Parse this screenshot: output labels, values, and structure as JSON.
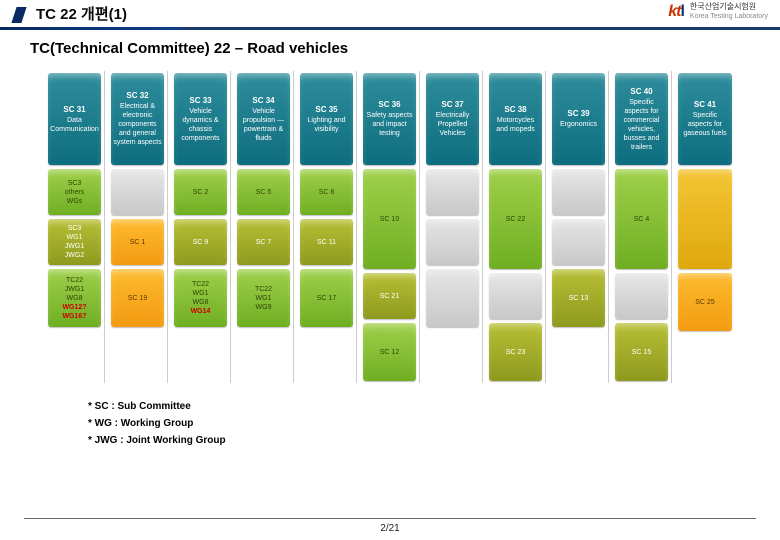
{
  "header": {
    "title": "TC 22 개편(1)",
    "logo_mark_a": "kt",
    "logo_mark_b": "l",
    "logo_line1": "한국산업기술시험원",
    "logo_line2": "Korea Testing Laboratory"
  },
  "subtitle": "TC(Technical Committee) 22 – Road vehicles",
  "colors": {
    "head": "c-teal",
    "greenA": "c-green",
    "oliveB": "c-olive",
    "orange": "c-orange",
    "gold": "c-gold",
    "gray": "c-gray"
  },
  "columns": [
    {
      "head": {
        "code": "SC 31",
        "desc": "Data Communication"
      },
      "a": {
        "cls": "c-green",
        "lines": [
          "SC3",
          "others",
          "WGs"
        ]
      },
      "b": {
        "cls": "c-olive",
        "lines": [
          "SC3",
          "WG1",
          "JWG1",
          "JWG2"
        ]
      },
      "c": {
        "cls": "c-green c-red-tx",
        "lines": [
          "TC22",
          "JWG1",
          "WG8"
        ],
        "red": [
          "WG12?",
          "WG16?"
        ]
      }
    },
    {
      "head": {
        "code": "SC 32",
        "desc": "Electrical & electronic components and general system aspects"
      },
      "a": {
        "cls": "c-gray",
        "lines": [
          ""
        ]
      },
      "b": {
        "cls": "c-orange",
        "lines": [
          "SC 1"
        ]
      },
      "c": {
        "cls": "c-orange",
        "lines": [
          "SC 19"
        ]
      }
    },
    {
      "head": {
        "code": "SC 33",
        "desc": "Vehicle dynamics & chassis components"
      },
      "a": {
        "cls": "c-green",
        "lines": [
          "SC 2"
        ]
      },
      "b": {
        "cls": "c-olive",
        "lines": [
          "SC 9"
        ]
      },
      "c": {
        "cls": "c-green c-red-tx",
        "lines": [
          "TC22",
          "WG1",
          "WG8"
        ],
        "red": [
          "WG14"
        ]
      }
    },
    {
      "head": {
        "code": "SC 34",
        "desc": "Vehicle propulsion — powertrain & fluids"
      },
      "a": {
        "cls": "c-green",
        "lines": [
          "SC 5"
        ]
      },
      "b": {
        "cls": "c-olive",
        "lines": [
          "SC 7"
        ]
      },
      "c": {
        "cls": "c-green",
        "lines": [
          "TC22",
          "WG1",
          "WG9"
        ]
      }
    },
    {
      "head": {
        "code": "SC 35",
        "desc": "Lighting and visibility"
      },
      "a": {
        "cls": "c-green",
        "lines": [
          "SC 8"
        ]
      },
      "b": {
        "cls": "c-olive",
        "lines": [
          "SC 11"
        ]
      },
      "c": {
        "cls": "c-green",
        "lines": [
          "SC 17"
        ]
      }
    },
    {
      "head": {
        "code": "SC 36",
        "desc": "Safety aspects and impact testing"
      },
      "a": {
        "cls": "c-green r-tall",
        "lines": [
          "SC 10"
        ],
        "tall": true
      },
      "b": {
        "cls": "c-olive",
        "lines": [
          "SC 21"
        ]
      },
      "c": {
        "cls": "c-green",
        "lines": [
          "SC 12"
        ]
      }
    },
    {
      "head": {
        "code": "SC 37",
        "desc": "Electrically Propelled Vehicles"
      },
      "a": {
        "cls": "c-gray",
        "lines": [
          ""
        ]
      },
      "b": {
        "cls": "c-gray",
        "lines": [
          ""
        ]
      },
      "c": {
        "cls": "c-gray",
        "lines": [
          ""
        ]
      }
    },
    {
      "head": {
        "code": "SC 38",
        "desc": "Motorcycles and mopeds"
      },
      "a": {
        "cls": "c-green",
        "lines": [
          "SC 22"
        ],
        "tall": true
      },
      "b": {
        "cls": "c-gray",
        "lines": [
          ""
        ]
      },
      "c": {
        "cls": "c-olive",
        "lines": [
          "SC 23"
        ]
      }
    },
    {
      "head": {
        "code": "SC 39",
        "desc": "Ergonomics"
      },
      "a": {
        "cls": "c-gray",
        "lines": [
          ""
        ]
      },
      "b": {
        "cls": "c-gray",
        "lines": [
          ""
        ]
      },
      "c": {
        "cls": "c-olive",
        "lines": [
          "SC 13"
        ]
      }
    },
    {
      "head": {
        "code": "SC 40",
        "desc": "Specific aspects for commercial vehicles, busses and trailers"
      },
      "a": {
        "cls": "c-green",
        "lines": [
          "SC 4"
        ],
        "tall": true
      },
      "b": {
        "cls": "c-gray",
        "lines": [
          ""
        ]
      },
      "c": {
        "cls": "c-olive",
        "lines": [
          "SC 15"
        ]
      }
    },
    {
      "head": {
        "code": "SC 41",
        "desc": "Specific aspects for gaseous fuels"
      },
      "a": {
        "cls": "c-gold",
        "lines": [
          ""
        ],
        "tall": true,
        "tallFull": true
      },
      "b": null,
      "c": {
        "cls": "c-orange",
        "lines": [
          "SC 25"
        ]
      }
    }
  ],
  "legend": [
    "* SC : Sub Committee",
    "* WG : Working Group",
    "* JWG : Joint Working Group"
  ],
  "footer": "2/21"
}
